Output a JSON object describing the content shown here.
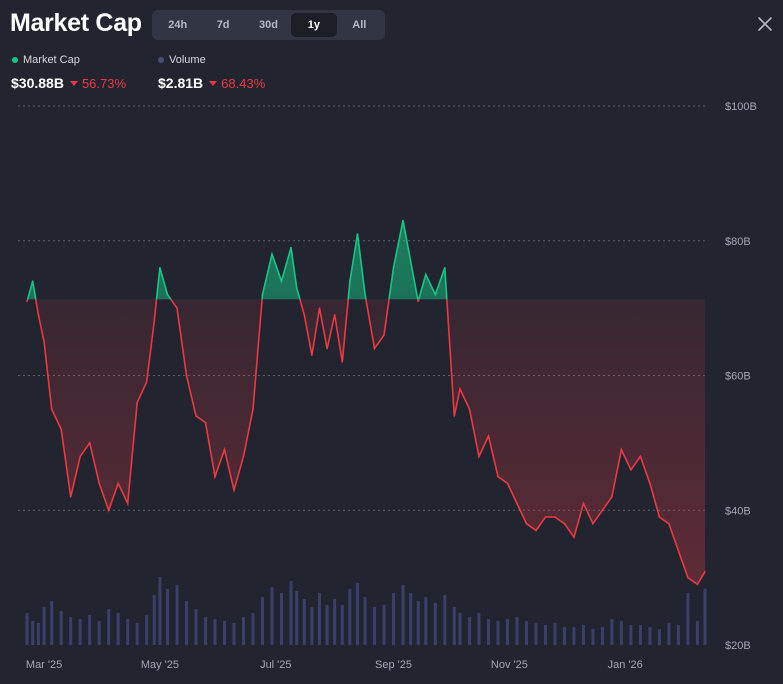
{
  "header": {
    "title": "Market Cap",
    "tabs": [
      "24h",
      "7d",
      "30d",
      "1y",
      "All"
    ],
    "active_tab": "1y"
  },
  "legend": {
    "market_cap": {
      "label": "Market Cap",
      "value": "$30.88B",
      "change": "56.73%"
    },
    "volume": {
      "label": "Volume",
      "value": "$2.81B",
      "change": "68.43%"
    }
  },
  "colors": {
    "up": "#16c784",
    "down": "#ea3943",
    "volume": "#3a3f6b",
    "background": "#222530",
    "legend_volume_dot": "#4a4f7a"
  },
  "chart_data": {
    "type": "area",
    "title": "",
    "xlabel": "",
    "ylabel": "",
    "baseline": 71.3,
    "ylim": [
      20,
      100
    ],
    "y_ticks": [
      "$100B",
      "$80B",
      "$60B",
      "$40B",
      "$20B"
    ],
    "x_ticks": [
      "Mar '25",
      "May '25",
      "Jul '25",
      "Sep '25",
      "Nov '25",
      "Jan '26"
    ],
    "grid": true,
    "series": [
      {
        "x": [
          "2025-02-20",
          "2025-02-23",
          "2025-02-26",
          "2025-03-01",
          "2025-03-05",
          "2025-03-10",
          "2025-03-15",
          "2025-03-20",
          "2025-03-25",
          "2025-03-30",
          "2025-04-04",
          "2025-04-09",
          "2025-04-14",
          "2025-04-19",
          "2025-04-24",
          "2025-04-28",
          "2025-05-01",
          "2025-05-05",
          "2025-05-10",
          "2025-05-15",
          "2025-05-20",
          "2025-05-25",
          "2025-05-30",
          "2025-06-04",
          "2025-06-09",
          "2025-06-14",
          "2025-06-19",
          "2025-06-24",
          "2025-06-29",
          "2025-07-04",
          "2025-07-09",
          "2025-07-12",
          "2025-07-16",
          "2025-07-20",
          "2025-07-24",
          "2025-07-28",
          "2025-08-01",
          "2025-08-05",
          "2025-08-09",
          "2025-08-13",
          "2025-08-17",
          "2025-08-22",
          "2025-08-27",
          "2025-09-01",
          "2025-09-06",
          "2025-09-10",
          "2025-09-14",
          "2025-09-18",
          "2025-09-23",
          "2025-09-28",
          "2025-10-03",
          "2025-10-06",
          "2025-10-11",
          "2025-10-16",
          "2025-10-21",
          "2025-10-26",
          "2025-10-31",
          "2025-11-05",
          "2025-11-10",
          "2025-11-15",
          "2025-11-20",
          "2025-11-25",
          "2025-11-30",
          "2025-12-05",
          "2025-12-10",
          "2025-12-15",
          "2025-12-20",
          "2025-12-25",
          "2025-12-30",
          "2026-01-04",
          "2026-01-09",
          "2026-01-14",
          "2026-01-19",
          "2026-01-24",
          "2026-01-29",
          "2026-02-03",
          "2026-02-08",
          "2026-02-12"
        ],
        "y": [
          71,
          74,
          69,
          65,
          55,
          52,
          42,
          48,
          50,
          44,
          40,
          44,
          41,
          56,
          59,
          68,
          76,
          72,
          70,
          60,
          54,
          53,
          45,
          49,
          43,
          48,
          55,
          72,
          78,
          74,
          79,
          73,
          69,
          63,
          70,
          64,
          69,
          62,
          74,
          81,
          72,
          64,
          66,
          76,
          83,
          77,
          71,
          75,
          72,
          76,
          54,
          58,
          55,
          48,
          51,
          45,
          44,
          41,
          38,
          37,
          39,
          39,
          38,
          36,
          41,
          38,
          40,
          42,
          49,
          46,
          48,
          44,
          39,
          38,
          34,
          30,
          29,
          30.88
        ]
      }
    ],
    "volume": {
      "values_b": [
        1.6,
        1.2,
        1.1,
        1.9,
        2.2,
        1.7,
        1.4,
        1.3,
        1.5,
        1.2,
        1.8,
        1.6,
        1.3,
        1.1,
        1.5,
        2.5,
        3.4,
        2.8,
        3.0,
        2.2,
        1.8,
        1.4,
        1.3,
        1.2,
        1.1,
        1.4,
        1.6,
        2.4,
        2.9,
        2.6,
        3.2,
        2.7,
        2.3,
        1.9,
        2.6,
        2.0,
        2.3,
        2.0,
        2.8,
        3.1,
        2.4,
        1.9,
        2.0,
        2.6,
        3.0,
        2.6,
        2.2,
        2.4,
        2.1,
        2.5,
        1.9,
        1.6,
        1.4,
        1.6,
        1.3,
        1.2,
        1.3,
        1.4,
        1.2,
        1.1,
        1.0,
        1.1,
        0.9,
        0.9,
        1.0,
        0.8,
        0.9,
        1.3,
        1.2,
        1.0,
        1.0,
        0.9,
        0.8,
        1.1,
        1.0,
        2.6,
        1.2,
        2.81
      ]
    }
  }
}
